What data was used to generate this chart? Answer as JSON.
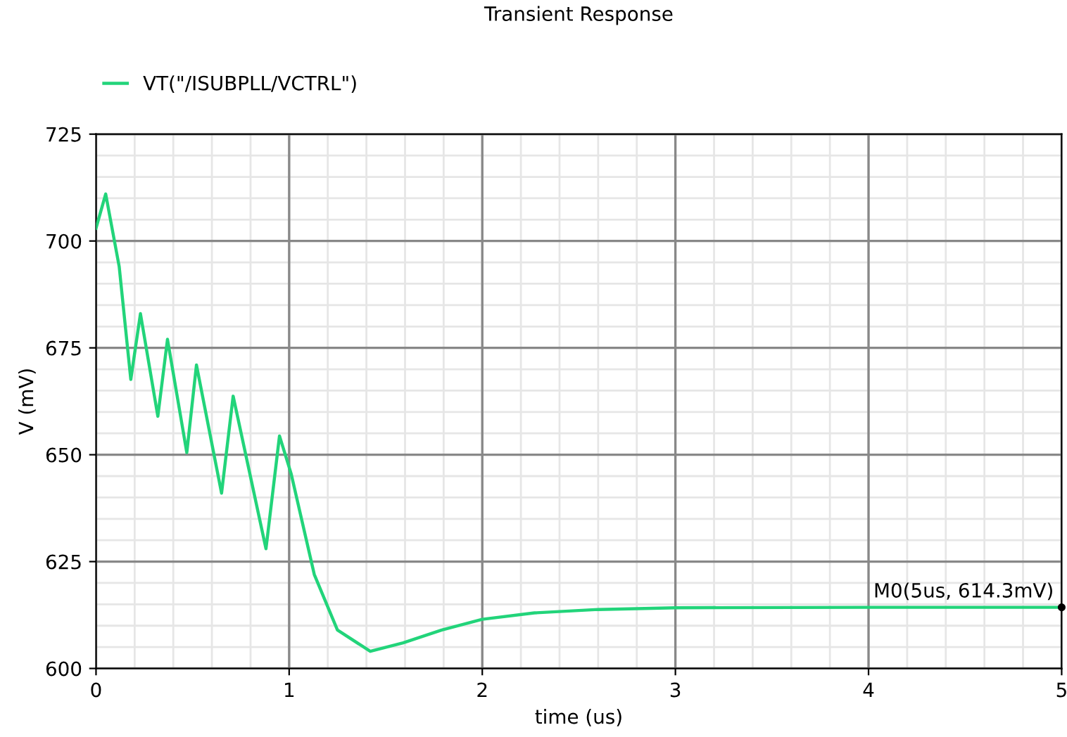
{
  "chart_data": {
    "type": "line",
    "title": "Transient Response",
    "xlabel": "time (us)",
    "ylabel": "V (mV)",
    "series": [
      {
        "name": "VT(\"/ISUBPLL/VCTRL\")",
        "color": "#22d47a",
        "x": [
          0,
          0.05,
          0.12,
          0.18,
          0.23,
          0.32,
          0.37,
          0.47,
          0.52,
          0.65,
          0.71,
          0.88,
          0.95,
          1.01,
          1.13,
          1.25,
          1.42,
          1.59,
          1.79,
          2.0,
          2.27,
          2.6,
          3.0,
          4.0,
          5.0
        ],
        "values": [
          703,
          711,
          694,
          667.6,
          683,
          659,
          677,
          650.5,
          671,
          641,
          663.7,
          628,
          654.4,
          645.6,
          622,
          609,
          604,
          606,
          609,
          611.5,
          613,
          613.8,
          614.2,
          614.3,
          614.3
        ]
      }
    ],
    "xlim": [
      0,
      5
    ],
    "xticks": [
      0,
      1,
      2,
      3,
      4,
      5
    ],
    "ylim": [
      600,
      725
    ],
    "yticks": [
      600,
      625,
      650,
      675,
      700,
      725
    ],
    "grid": true,
    "legend": "top left",
    "marker": "none",
    "line_style": "solid",
    "annotations": [
      {
        "text": "M0(5us, 614.3mV)",
        "x": 5,
        "y": 614.3
      }
    ]
  }
}
